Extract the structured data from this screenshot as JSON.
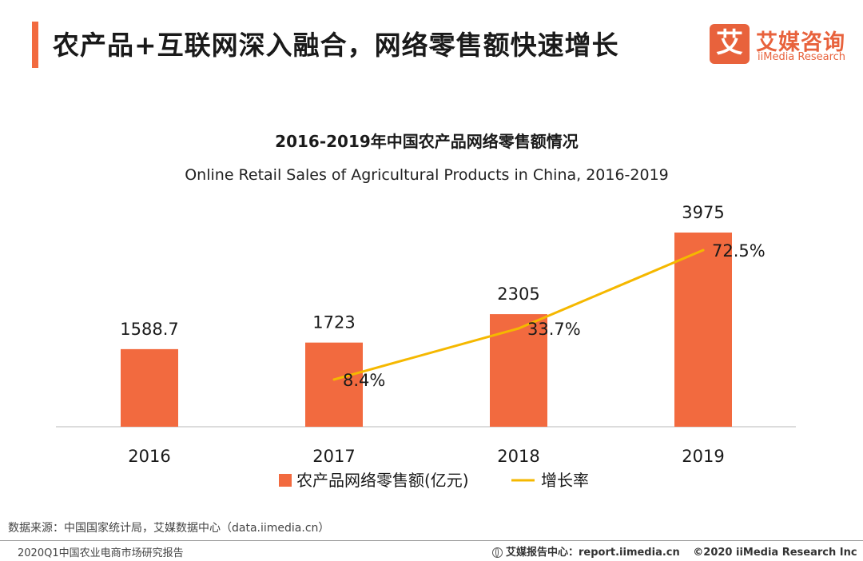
{
  "header": {
    "title": "农产品+互联网深入融合，网络零售额快速增长"
  },
  "logo": {
    "mark_char": "艾",
    "name_cn": "艾媒咨询",
    "name_en": "iiMedia Research"
  },
  "chart_data": {
    "type": "bar",
    "title": "2016-2019年中国农产品网络零售额情况",
    "subtitle": "Online Retail Sales of Agricultural Products in China, 2016-2019",
    "categories": [
      "2016",
      "2017",
      "2018",
      "2019"
    ],
    "series": [
      {
        "name": "农产品网络零售额(亿元)",
        "type": "bar",
        "values": [
          1588.7,
          1723,
          2305,
          3975
        ],
        "labels": [
          "1588.7",
          "1723",
          "2305",
          "3975"
        ],
        "color": "#f26a3f"
      },
      {
        "name": "增长率",
        "type": "line",
        "values": [
          null,
          8.4,
          33.7,
          72.5
        ],
        "labels": [
          "",
          "8.4%",
          "33.7%",
          "72.5%"
        ],
        "unit": "%",
        "color": "#f5b800"
      }
    ],
    "ylim": [
      0,
      3975
    ],
    "y2lim": [
      -15,
      72.5
    ],
    "grid": false,
    "legend": "bottom"
  },
  "source": {
    "text": "数据来源：中国国家统计局，艾媒数据中心（data.iimedia.cn）"
  },
  "footer": {
    "report_name": "2020Q1中国农业电商市场研究报告",
    "site": "艾媒报告中心：report.iimedia.cn",
    "copyright": "©2020  iiMedia Research  Inc"
  }
}
